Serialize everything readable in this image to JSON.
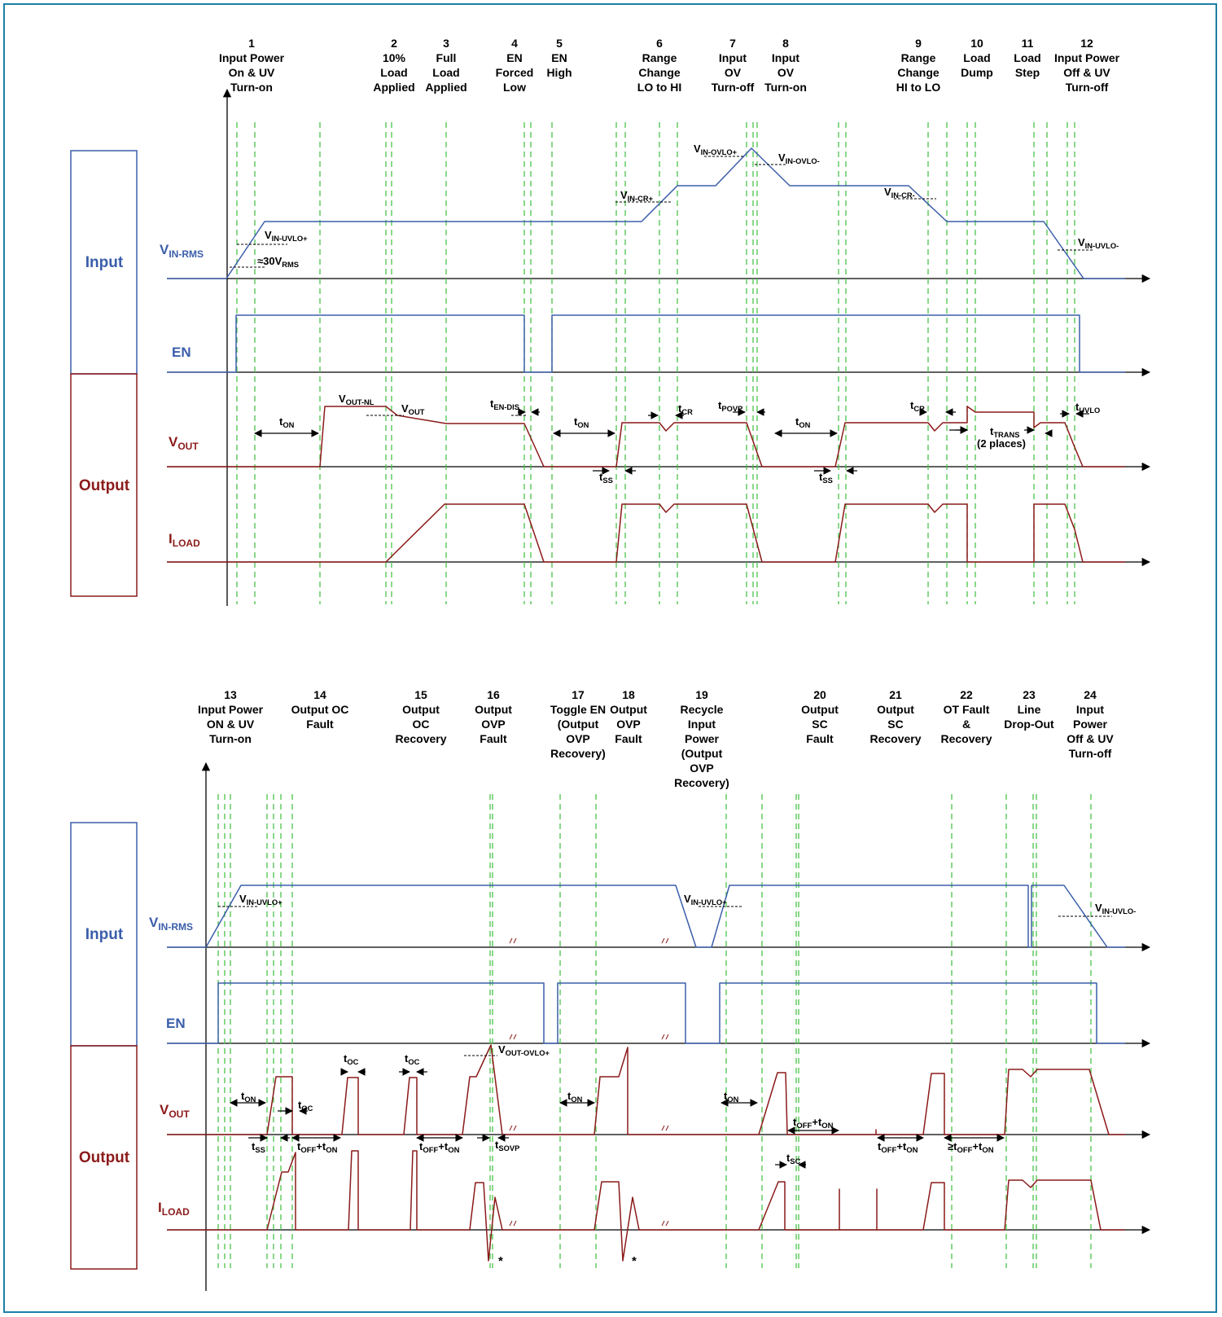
{
  "colors": {
    "frame": "#1c7fa7",
    "input": "#3b5eaa",
    "output": "#8b1a1a",
    "guide": "#4cc24c",
    "axis": "#000000"
  },
  "signals": {
    "vin": {
      "main": "V",
      "sub": "IN-RMS"
    },
    "en": "EN",
    "vout": {
      "main": "V",
      "sub": "OUT"
    },
    "iload": {
      "main": "I",
      "sub": "LOAD"
    }
  },
  "boxes": {
    "input": "Input",
    "output": "Output"
  },
  "top": {
    "events": [
      {
        "num": "1",
        "lines": [
          "Input Power",
          "On & UV",
          "Turn-on"
        ]
      },
      {
        "num": "2",
        "lines": [
          "10%",
          "Load",
          "Applied"
        ]
      },
      {
        "num": "3",
        "lines": [
          "Full",
          "Load",
          "Applied"
        ]
      },
      {
        "num": "4",
        "lines": [
          "EN",
          "Forced",
          "Low"
        ]
      },
      {
        "num": "5",
        "lines": [
          "EN",
          "High"
        ]
      },
      {
        "num": "6",
        "lines": [
          "Range",
          "Change",
          "LO to HI"
        ]
      },
      {
        "num": "7",
        "lines": [
          "Input",
          "OV",
          "Turn-off"
        ]
      },
      {
        "num": "8",
        "lines": [
          "Input",
          "OV",
          "Turn-on"
        ]
      },
      {
        "num": "9",
        "lines": [
          "Range",
          "Change",
          "HI to LO"
        ]
      },
      {
        "num": "10",
        "lines": [
          "Load",
          "Dump"
        ]
      },
      {
        "num": "11",
        "lines": [
          "Load",
          "Step"
        ]
      },
      {
        "num": "12",
        "lines": [
          "Input Power",
          "Off & UV",
          "Turn-off"
        ]
      }
    ],
    "annotations": [
      {
        "main": "V",
        "sub": "IN-UVLO+"
      },
      {
        "main": "≈30V",
        "sub": "RMS"
      },
      {
        "main": "V",
        "sub": "IN-CR+"
      },
      {
        "main": "V",
        "sub": "IN-OVLO+"
      },
      {
        "main": "V",
        "sub": "IN-OVLO-"
      },
      {
        "main": "V",
        "sub": "IN-CR-"
      },
      {
        "main": "V",
        "sub": "IN-UVLO-"
      },
      {
        "main": "V",
        "sub": "OUT-NL"
      },
      {
        "main": "V",
        "sub": "OUT"
      },
      {
        "main": "t",
        "sub": "ON"
      },
      {
        "main": "t",
        "sub": "EN-DIS"
      },
      {
        "main": "t",
        "sub": "ON"
      },
      {
        "main": "t",
        "sub": "SS"
      },
      {
        "main": "t",
        "sub": "CR"
      },
      {
        "main": "t",
        "sub": "POVP"
      },
      {
        "main": "t",
        "sub": "ON"
      },
      {
        "main": "t",
        "sub": "SS"
      },
      {
        "main": "t",
        "sub": "CR"
      },
      {
        "main": "t",
        "sub": "TRANS"
      },
      {
        "main": "t",
        "sub": "UVLO"
      }
    ],
    "two_places": "(2 places)"
  },
  "bottom": {
    "events": [
      {
        "num": "13",
        "lines": [
          "Input Power",
          "ON & UV",
          "Turn-on"
        ]
      },
      {
        "num": "14",
        "lines": [
          "Output OC",
          "Fault"
        ]
      },
      {
        "num": "15",
        "lines": [
          "Output",
          "OC",
          "Recovery"
        ]
      },
      {
        "num": "16",
        "lines": [
          "Output",
          "OVP",
          "Fault"
        ]
      },
      {
        "num": "17",
        "lines": [
          "Toggle EN",
          "(Output",
          "OVP",
          "Recovery)"
        ]
      },
      {
        "num": "18",
        "lines": [
          "Output",
          "OVP",
          "Fault"
        ]
      },
      {
        "num": "19",
        "lines": [
          "Recycle",
          "Input",
          "Power",
          "(Output",
          "OVP",
          "Recovery)"
        ]
      },
      {
        "num": "20",
        "lines": [
          "Output",
          "SC",
          "Fault"
        ]
      },
      {
        "num": "21",
        "lines": [
          "Output",
          "SC",
          "Recovery"
        ]
      },
      {
        "num": "22",
        "lines": [
          "OT Fault",
          "&",
          "Recovery"
        ]
      },
      {
        "num": "23",
        "lines": [
          "Line",
          "Drop-Out"
        ]
      },
      {
        "num": "24",
        "lines": [
          "Input",
          "Power",
          "Off & UV",
          "Turn-off"
        ]
      }
    ],
    "annotations": [
      {
        "main": "V",
        "sub": "IN-UVLO+"
      },
      {
        "main": "V",
        "sub": "IN-UVLO+"
      },
      {
        "main": "V",
        "sub": "IN-UVLO-"
      },
      {
        "main": "V",
        "sub": "OUT-OVLO+"
      },
      {
        "main": "t",
        "sub": "ON"
      },
      {
        "main": "t",
        "sub": "SS"
      },
      {
        "main": "t",
        "sub": "OC"
      },
      {
        "main": "t",
        "sub": "OC"
      },
      {
        "main": "t",
        "sub": "OC"
      },
      {
        "main": "t",
        "sub": "SOVP"
      },
      {
        "main": "t",
        "sub": "ON"
      },
      {
        "main": "t",
        "sub": "ON"
      },
      {
        "main": "t",
        "sub": "SC"
      }
    ],
    "toff_ton": [
      {
        "a": "t",
        "b": "OFF",
        "c": "+t",
        "d": "ON"
      },
      {
        "a": "t",
        "b": "OFF",
        "c": "+t",
        "d": "ON"
      },
      {
        "a": "t",
        "b": "OFF",
        "c": "+t",
        "d": "ON"
      },
      {
        "a": "t",
        "b": "OFF",
        "c": "+t",
        "d": "ON"
      },
      {
        "a": "≥t",
        "b": "OFF",
        "c": "+t",
        "d": "ON"
      }
    ],
    "asterisk": "*"
  }
}
